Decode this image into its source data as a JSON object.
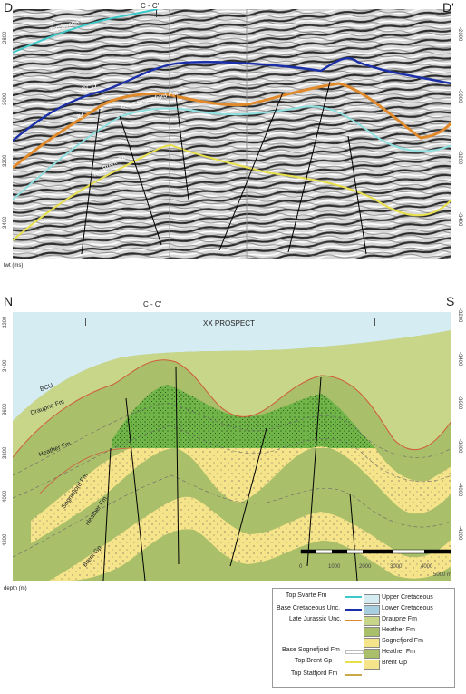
{
  "top_panel": {
    "left_label": "D",
    "right_label": "D'",
    "section_marker": "C - C'",
    "axis_label": "twt (ms)",
    "left_ticks": [
      "-2800",
      "-3000",
      "-3200",
      "-3400"
    ],
    "right_ticks": [
      "-2800",
      "-3000",
      "-3200",
      "-3400"
    ],
    "horizon_labels": {
      "svarte": "Top Svarte Fm",
      "bcu": "BCU",
      "lju": "LJU",
      "sognefjord": "Base Sognefjord Fm",
      "brent": "Top Brent Gp"
    }
  },
  "bottom_panel": {
    "left_label": "N",
    "right_label": "S",
    "section_marker": "C - C'",
    "prospect": "XX PROSPECT",
    "axis_label": "depth (m)",
    "left_ticks": [
      "-3200",
      "-3400",
      "-3600",
      "-3800",
      "-4000",
      "-4200"
    ],
    "right_ticks": [
      "-3200",
      "-3400",
      "-3600",
      "-3800",
      "-4000",
      "-4200"
    ],
    "formation_labels": {
      "bcu": "BCU",
      "draupne": "Draupne Fm",
      "heather_upper": "Heather Fm",
      "sognefjord": "Sognefjord Fm",
      "heather_lower": "Heather Fm",
      "brent": "Brent Gp"
    },
    "scale_ticks": [
      "0",
      "1000",
      "2000",
      "3000",
      "4000",
      "5000 m"
    ]
  },
  "legend": {
    "lines": [
      {
        "label": "Top Svarte Fm",
        "color": "#3ec9c9"
      },
      {
        "label": "Base Cretaceous Unc.",
        "color": "#1a2fa8"
      },
      {
        "label": "Late Jurassic Unc.",
        "color": "#e08a2c"
      },
      {
        "label": "Base Sognefjord Fm",
        "color": "#ffffff"
      },
      {
        "label": "Top Brent Gp",
        "color": "#e8e04a"
      },
      {
        "label": "Top Statfjord Fm",
        "color": "#c9a94a"
      }
    ],
    "units": [
      {
        "label": "Upper Cretaceous",
        "color": "#d6ecf3"
      },
      {
        "label": "Lower Cretaceous",
        "color": "#a8cfe0"
      },
      {
        "label": "Draupne Fm",
        "color": "#c8d68a"
      },
      {
        "label": "Heather Fm",
        "color": "#a9bf6a"
      },
      {
        "label": "Sognefjord Fm",
        "color": "#f6e48a"
      },
      {
        "label": "Heather Fm",
        "color": "#a9bf6a"
      },
      {
        "label": "Brent Gp",
        "color": "#f6e48a"
      }
    ]
  }
}
